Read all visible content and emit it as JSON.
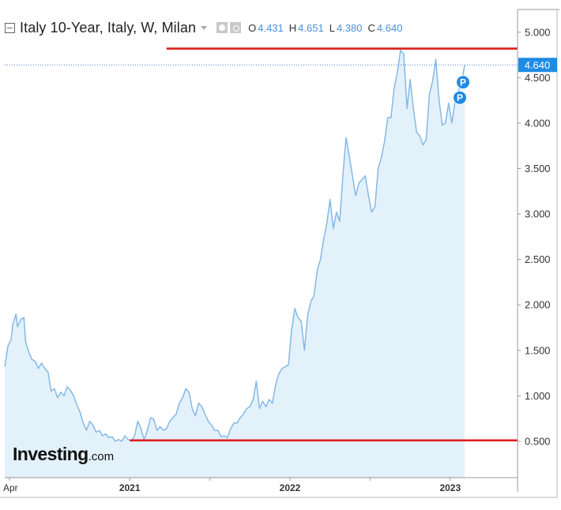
{
  "header": {
    "title": "Italy 10-Year, Italy, W, Milan",
    "ohlc": [
      {
        "key": "O",
        "value": "4.431"
      },
      {
        "key": "H",
        "value": "4.651"
      },
      {
        "key": "L",
        "value": "4.380"
      },
      {
        "key": "C",
        "value": "4.640"
      }
    ]
  },
  "watermark": {
    "brand": "Investing",
    "suffix": ".com"
  },
  "chart_data": {
    "type": "area",
    "title": "Italy 10-Year, Italy, W, Milan",
    "xlabel": "",
    "ylabel": "",
    "ylim": [
      0.1,
      5.25
    ],
    "y_ticks": [
      "5.000",
      "4.500",
      "4.000",
      "3.500",
      "3.000",
      "2.500",
      "2.000",
      "1.500",
      "1.000",
      "0.500"
    ],
    "x_ticks": [
      {
        "label": "Apr",
        "x": 2020.25
      },
      {
        "label": "2021",
        "x": 2021.0
      },
      {
        "label": "",
        "x": 2021.5
      },
      {
        "label": "2022",
        "x": 2022.0
      },
      {
        "label": "",
        "x": 2022.5
      },
      {
        "label": "2023",
        "x": 2023.0
      }
    ],
    "xlim": [
      2020.22,
      2023.42
    ],
    "last_value_label": "4.640",
    "last_value": 4.64,
    "horizontal_lines": [
      {
        "y": 4.82,
        "x_start": 2021.23,
        "color": "#dd1c1c"
      },
      {
        "y": 0.51,
        "x_start": 2021.0,
        "color": "#dd1c1c"
      }
    ],
    "markers": [
      {
        "label": "P",
        "x": 2023.08,
        "y": 4.45
      },
      {
        "label": "P",
        "x": 2023.06,
        "y": 4.28
      }
    ],
    "series": [
      {
        "line_color": "#85b9e6",
        "fill_color": "#e3f1fb",
        "points": [
          [
            2020.22,
            1.32
          ],
          [
            2020.24,
            1.55
          ],
          [
            2020.26,
            1.62
          ],
          [
            2020.27,
            1.78
          ],
          [
            2020.29,
            1.9
          ],
          [
            2020.3,
            1.76
          ],
          [
            2020.32,
            1.84
          ],
          [
            2020.34,
            1.86
          ],
          [
            2020.35,
            1.6
          ],
          [
            2020.37,
            1.48
          ],
          [
            2020.39,
            1.4
          ],
          [
            2020.41,
            1.38
          ],
          [
            2020.43,
            1.3
          ],
          [
            2020.45,
            1.36
          ],
          [
            2020.47,
            1.3
          ],
          [
            2020.49,
            1.26
          ],
          [
            2020.51,
            1.05
          ],
          [
            2020.53,
            1.08
          ],
          [
            2020.55,
            0.98
          ],
          [
            2020.57,
            1.04
          ],
          [
            2020.59,
            1.0
          ],
          [
            2020.61,
            1.1
          ],
          [
            2020.63,
            1.06
          ],
          [
            2020.65,
            1.0
          ],
          [
            2020.67,
            0.9
          ],
          [
            2020.69,
            0.82
          ],
          [
            2020.71,
            0.7
          ],
          [
            2020.73,
            0.62
          ],
          [
            2020.75,
            0.72
          ],
          [
            2020.77,
            0.68
          ],
          [
            2020.79,
            0.6
          ],
          [
            2020.81,
            0.62
          ],
          [
            2020.83,
            0.56
          ],
          [
            2020.85,
            0.58
          ],
          [
            2020.87,
            0.54
          ],
          [
            2020.89,
            0.55
          ],
          [
            2020.91,
            0.5
          ],
          [
            2020.93,
            0.52
          ],
          [
            2020.95,
            0.5
          ],
          [
            2020.97,
            0.56
          ],
          [
            2020.99,
            0.52
          ],
          [
            2021.01,
            0.5
          ],
          [
            2021.03,
            0.56
          ],
          [
            2021.05,
            0.72
          ],
          [
            2021.07,
            0.64
          ],
          [
            2021.09,
            0.52
          ],
          [
            2021.11,
            0.62
          ],
          [
            2021.13,
            0.76
          ],
          [
            2021.15,
            0.74
          ],
          [
            2021.17,
            0.62
          ],
          [
            2021.19,
            0.66
          ],
          [
            2021.21,
            0.62
          ],
          [
            2021.23,
            0.64
          ],
          [
            2021.25,
            0.72
          ],
          [
            2021.27,
            0.76
          ],
          [
            2021.29,
            0.8
          ],
          [
            2021.31,
            0.92
          ],
          [
            2021.33,
            0.98
          ],
          [
            2021.35,
            1.08
          ],
          [
            2021.37,
            1.04
          ],
          [
            2021.39,
            0.86
          ],
          [
            2021.41,
            0.78
          ],
          [
            2021.43,
            0.92
          ],
          [
            2021.45,
            0.88
          ],
          [
            2021.47,
            0.8
          ],
          [
            2021.49,
            0.72
          ],
          [
            2021.51,
            0.68
          ],
          [
            2021.53,
            0.62
          ],
          [
            2021.55,
            0.62
          ],
          [
            2021.57,
            0.55
          ],
          [
            2021.59,
            0.56
          ],
          [
            2021.61,
            0.54
          ],
          [
            2021.63,
            0.64
          ],
          [
            2021.65,
            0.7
          ],
          [
            2021.67,
            0.7
          ],
          [
            2021.69,
            0.76
          ],
          [
            2021.71,
            0.8
          ],
          [
            2021.73,
            0.86
          ],
          [
            2021.75,
            0.88
          ],
          [
            2021.77,
            0.96
          ],
          [
            2021.79,
            1.16
          ],
          [
            2021.81,
            0.86
          ],
          [
            2021.83,
            0.94
          ],
          [
            2021.85,
            0.88
          ],
          [
            2021.87,
            0.96
          ],
          [
            2021.89,
            0.92
          ],
          [
            2021.91,
            1.12
          ],
          [
            2021.93,
            1.24
          ],
          [
            2021.95,
            1.3
          ],
          [
            2021.97,
            1.32
          ],
          [
            2021.99,
            1.34
          ],
          [
            2022.01,
            1.72
          ],
          [
            2022.03,
            1.96
          ],
          [
            2022.05,
            1.86
          ],
          [
            2022.07,
            1.82
          ],
          [
            2022.09,
            1.5
          ],
          [
            2022.11,
            1.88
          ],
          [
            2022.13,
            2.04
          ],
          [
            2022.15,
            2.1
          ],
          [
            2022.17,
            2.38
          ],
          [
            2022.19,
            2.5
          ],
          [
            2022.21,
            2.72
          ],
          [
            2022.23,
            2.9
          ],
          [
            2022.25,
            3.16
          ],
          [
            2022.27,
            2.84
          ],
          [
            2022.29,
            3.02
          ],
          [
            2022.31,
            2.92
          ],
          [
            2022.33,
            3.42
          ],
          [
            2022.35,
            3.84
          ],
          [
            2022.37,
            3.64
          ],
          [
            2022.39,
            3.42
          ],
          [
            2022.41,
            3.2
          ],
          [
            2022.43,
            3.34
          ],
          [
            2022.45,
            3.38
          ],
          [
            2022.47,
            3.42
          ],
          [
            2022.49,
            3.2
          ],
          [
            2022.51,
            3.02
          ],
          [
            2022.53,
            3.08
          ],
          [
            2022.55,
            3.5
          ],
          [
            2022.57,
            3.62
          ],
          [
            2022.59,
            3.8
          ],
          [
            2022.61,
            4.06
          ],
          [
            2022.63,
            4.06
          ],
          [
            2022.65,
            4.38
          ],
          [
            2022.67,
            4.56
          ],
          [
            2022.69,
            4.8
          ],
          [
            2022.71,
            4.76
          ],
          [
            2022.73,
            4.16
          ],
          [
            2022.75,
            4.48
          ],
          [
            2022.77,
            4.16
          ],
          [
            2022.79,
            3.9
          ],
          [
            2022.81,
            3.86
          ],
          [
            2022.83,
            3.76
          ],
          [
            2022.85,
            3.82
          ],
          [
            2022.87,
            4.32
          ],
          [
            2022.89,
            4.46
          ],
          [
            2022.91,
            4.7
          ],
          [
            2022.93,
            4.26
          ],
          [
            2022.95,
            3.98
          ],
          [
            2022.97,
            4.0
          ],
          [
            2022.99,
            4.22
          ],
          [
            2023.01,
            4.0
          ],
          [
            2023.03,
            4.24
          ],
          [
            2023.05,
            4.36
          ],
          [
            2023.07,
            4.44
          ],
          [
            2023.09,
            4.64
          ]
        ]
      }
    ]
  }
}
